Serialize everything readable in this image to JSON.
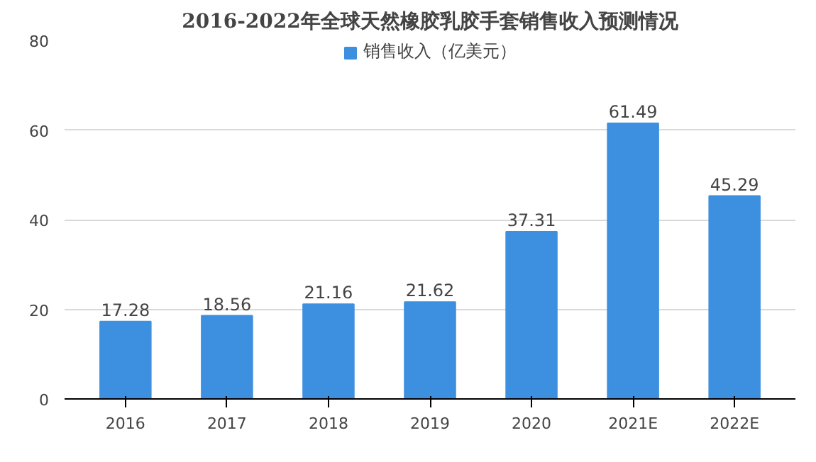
{
  "chart_data": {
    "type": "bar",
    "title": "2016-2022年全球天然橡胶乳胶手套销售收入预测情况",
    "categories": [
      "2016",
      "2017",
      "2018",
      "2019",
      "2020",
      "2021E",
      "2022E"
    ],
    "series": [
      {
        "name": "销售收入（亿美元）",
        "color": "#3d8fe0",
        "values": [
          17.28,
          18.56,
          21.16,
          21.62,
          37.31,
          61.49,
          45.29
        ]
      }
    ],
    "ylim": [
      0,
      80
    ],
    "yticks": [
      0,
      20,
      40,
      60,
      80
    ],
    "grid": "y",
    "legend": "top",
    "data_labels": true
  }
}
